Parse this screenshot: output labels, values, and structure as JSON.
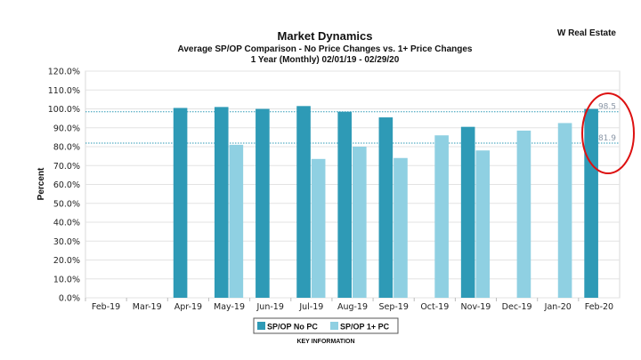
{
  "page": {
    "brand": "W Real Estate",
    "key_label": "KEY INFORMATION"
  },
  "chart_data": {
    "type": "bar",
    "title": "Market Dynamics",
    "subtitle": "Average SP/OP Comparison - No Price Changes vs. 1+ Price Changes",
    "subtitle2": "1 Year (Monthly) 02/01/19 - 02/29/20",
    "ylabel": "Percent",
    "xlabel": "",
    "ylim": [
      0,
      120
    ],
    "yticks": [
      "0.0%",
      "10.0%",
      "20.0%",
      "30.0%",
      "40.0%",
      "50.0%",
      "60.0%",
      "70.0%",
      "80.0%",
      "90.0%",
      "100.0%",
      "110.0%",
      "120.0%"
    ],
    "grid": true,
    "legend_position": "bottom",
    "categories": [
      "Feb-19",
      "Mar-19",
      "Apr-19",
      "May-19",
      "Jun-19",
      "Jul-19",
      "Aug-19",
      "Sep-19",
      "Oct-19",
      "Nov-19",
      "Dec-19",
      "Jan-20",
      "Feb-20"
    ],
    "series": [
      {
        "name": "SP/OP No PC",
        "color": "#2e9ab6",
        "values": [
          null,
          null,
          100.5,
          101,
          100,
          101.5,
          98.5,
          95.5,
          null,
          90.5,
          null,
          null,
          100
        ]
      },
      {
        "name": "SP/OP 1+ PC",
        "color": "#8fd0e2",
        "values": [
          null,
          null,
          null,
          81,
          null,
          73.5,
          80,
          74,
          86,
          78,
          88.5,
          92.5,
          null
        ]
      }
    ],
    "reference_lines": [
      {
        "label": "98.5",
        "value": 98.5,
        "color": "#2e9ab6"
      },
      {
        "label": "81.9",
        "value": 81.9,
        "color": "#2e9ab6"
      }
    ],
    "annotation": {
      "shape": "red-ellipse",
      "color": "#dd1111"
    }
  }
}
